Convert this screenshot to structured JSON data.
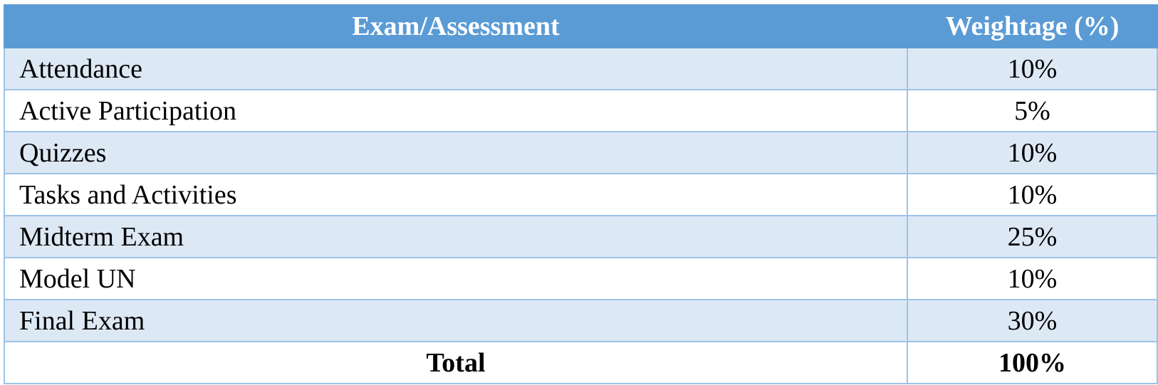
{
  "table": {
    "header": [
      "Exam/Assessment",
      "Weightage (%)"
    ],
    "rows": [
      [
        "Attendance",
        "10%"
      ],
      [
        "Active Participation",
        "5%"
      ],
      [
        "Quizzes",
        "10%"
      ],
      [
        "Tasks and Activities",
        "10%"
      ],
      [
        "Midterm Exam",
        "25%"
      ],
      [
        "Model UN",
        "10%"
      ],
      [
        "Final Exam",
        "30%"
      ]
    ],
    "total": [
      "Total",
      "100%"
    ]
  }
}
